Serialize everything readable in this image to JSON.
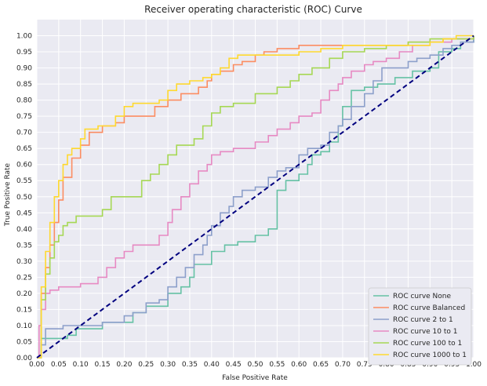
{
  "chart_data": {
    "type": "line",
    "title": "Receiver operating characteristic (ROC) Curve",
    "xlabel": "False Positive Rate",
    "ylabel": "True Positive Rate",
    "xlim": [
      0.0,
      1.0
    ],
    "ylim": [
      0.0,
      1.05
    ],
    "xticks": [
      "0.00",
      "0.05",
      "0.10",
      "0.15",
      "0.20",
      "0.25",
      "0.30",
      "0.35",
      "0.40",
      "0.45",
      "0.50",
      "0.55",
      "0.60",
      "0.65",
      "0.70",
      "0.75",
      "0.80",
      "0.85",
      "0.90",
      "0.95",
      "1.00"
    ],
    "yticks": [
      "0.00",
      "0.05",
      "0.10",
      "0.15",
      "0.20",
      "0.25",
      "0.30",
      "0.35",
      "0.40",
      "0.45",
      "0.50",
      "0.55",
      "0.60",
      "0.65",
      "0.70",
      "0.75",
      "0.80",
      "0.85",
      "0.90",
      "0.95",
      "1.00"
    ],
    "grid": true,
    "background": "#eaeaf2",
    "legend_position": "lower-right",
    "series": [
      {
        "name": "ROC curve None",
        "color": "#66c2a5",
        "points": [
          [
            0,
            0
          ],
          [
            0.01,
            0.02
          ],
          [
            0.01,
            0.06
          ],
          [
            0.05,
            0.06
          ],
          [
            0.07,
            0.07
          ],
          [
            0.09,
            0.09
          ],
          [
            0.15,
            0.09
          ],
          [
            0.15,
            0.11
          ],
          [
            0.2,
            0.11
          ],
          [
            0.22,
            0.14
          ],
          [
            0.25,
            0.16
          ],
          [
            0.28,
            0.16
          ],
          [
            0.3,
            0.2
          ],
          [
            0.33,
            0.22
          ],
          [
            0.35,
            0.25
          ],
          [
            0.36,
            0.29
          ],
          [
            0.4,
            0.33
          ],
          [
            0.43,
            0.35
          ],
          [
            0.46,
            0.36
          ],
          [
            0.5,
            0.38
          ],
          [
            0.53,
            0.4
          ],
          [
            0.55,
            0.52
          ],
          [
            0.57,
            0.55
          ],
          [
            0.6,
            0.57
          ],
          [
            0.62,
            0.6
          ],
          [
            0.63,
            0.63
          ],
          [
            0.65,
            0.64
          ],
          [
            0.67,
            0.67
          ],
          [
            0.69,
            0.72
          ],
          [
            0.7,
            0.78
          ],
          [
            0.72,
            0.83
          ],
          [
            0.75,
            0.84
          ],
          [
            0.78,
            0.85
          ],
          [
            0.82,
            0.87
          ],
          [
            0.86,
            0.89
          ],
          [
            0.9,
            0.9
          ],
          [
            0.92,
            0.95
          ],
          [
            0.95,
            0.96
          ],
          [
            0.97,
            0.98
          ],
          [
            1.0,
            1.0
          ]
        ]
      },
      {
        "name": "ROC curve Balanced",
        "color": "#fc8d62",
        "points": [
          [
            0,
            0
          ],
          [
            0.01,
            0.2
          ],
          [
            0.02,
            0.28
          ],
          [
            0.03,
            0.35
          ],
          [
            0.04,
            0.42
          ],
          [
            0.05,
            0.49
          ],
          [
            0.06,
            0.56
          ],
          [
            0.08,
            0.62
          ],
          [
            0.1,
            0.66
          ],
          [
            0.12,
            0.7
          ],
          [
            0.15,
            0.72
          ],
          [
            0.18,
            0.73
          ],
          [
            0.2,
            0.75
          ],
          [
            0.27,
            0.78
          ],
          [
            0.3,
            0.8
          ],
          [
            0.33,
            0.82
          ],
          [
            0.37,
            0.84
          ],
          [
            0.39,
            0.86
          ],
          [
            0.4,
            0.88
          ],
          [
            0.42,
            0.89
          ],
          [
            0.45,
            0.91
          ],
          [
            0.47,
            0.92
          ],
          [
            0.5,
            0.94
          ],
          [
            0.52,
            0.95
          ],
          [
            0.55,
            0.96
          ],
          [
            0.58,
            0.96
          ],
          [
            0.6,
            0.97
          ],
          [
            0.63,
            0.97
          ],
          [
            0.67,
            0.97
          ],
          [
            0.7,
            0.97
          ],
          [
            0.75,
            0.97
          ],
          [
            0.8,
            0.97
          ],
          [
            0.85,
            0.98
          ],
          [
            0.9,
            0.98
          ],
          [
            0.93,
            0.99
          ],
          [
            0.97,
            0.99
          ],
          [
            1.0,
            1.0
          ]
        ]
      },
      {
        "name": "ROC curve 2 to 1",
        "color": "#8da0cb",
        "points": [
          [
            0,
            0
          ],
          [
            0.01,
            0.01
          ],
          [
            0.01,
            0.04
          ],
          [
            0.02,
            0.07
          ],
          [
            0.02,
            0.09
          ],
          [
            0.06,
            0.1
          ],
          [
            0.13,
            0.1
          ],
          [
            0.15,
            0.11
          ],
          [
            0.17,
            0.11
          ],
          [
            0.2,
            0.13
          ],
          [
            0.22,
            0.14
          ],
          [
            0.25,
            0.17
          ],
          [
            0.28,
            0.18
          ],
          [
            0.3,
            0.22
          ],
          [
            0.32,
            0.25
          ],
          [
            0.34,
            0.28
          ],
          [
            0.36,
            0.32
          ],
          [
            0.38,
            0.35
          ],
          [
            0.39,
            0.38
          ],
          [
            0.4,
            0.41
          ],
          [
            0.42,
            0.45
          ],
          [
            0.44,
            0.47
          ],
          [
            0.45,
            0.5
          ],
          [
            0.47,
            0.52
          ],
          [
            0.5,
            0.53
          ],
          [
            0.53,
            0.56
          ],
          [
            0.55,
            0.58
          ],
          [
            0.57,
            0.59
          ],
          [
            0.6,
            0.63
          ],
          [
            0.62,
            0.65
          ],
          [
            0.65,
            0.66
          ],
          [
            0.67,
            0.7
          ],
          [
            0.69,
            0.72
          ],
          [
            0.7,
            0.74
          ],
          [
            0.72,
            0.78
          ],
          [
            0.75,
            0.82
          ],
          [
            0.77,
            0.86
          ],
          [
            0.79,
            0.9
          ],
          [
            0.85,
            0.92
          ],
          [
            0.87,
            0.93
          ],
          [
            0.9,
            0.94
          ],
          [
            0.93,
            0.96
          ],
          [
            0.95,
            0.97
          ],
          [
            0.97,
            0.98
          ],
          [
            1.0,
            1.0
          ]
        ]
      },
      {
        "name": "ROC curve 10 to 1",
        "color": "#e78ac3",
        "points": [
          [
            0,
            0
          ],
          [
            0.005,
            0.1
          ],
          [
            0.01,
            0.15
          ],
          [
            0.02,
            0.2
          ],
          [
            0.03,
            0.21
          ],
          [
            0.05,
            0.22
          ],
          [
            0.1,
            0.23
          ],
          [
            0.14,
            0.25
          ],
          [
            0.16,
            0.28
          ],
          [
            0.18,
            0.31
          ],
          [
            0.2,
            0.33
          ],
          [
            0.22,
            0.35
          ],
          [
            0.25,
            0.35
          ],
          [
            0.28,
            0.38
          ],
          [
            0.3,
            0.42
          ],
          [
            0.31,
            0.46
          ],
          [
            0.33,
            0.5
          ],
          [
            0.35,
            0.54
          ],
          [
            0.37,
            0.58
          ],
          [
            0.39,
            0.6
          ],
          [
            0.4,
            0.63
          ],
          [
            0.42,
            0.64
          ],
          [
            0.45,
            0.65
          ],
          [
            0.5,
            0.67
          ],
          [
            0.53,
            0.69
          ],
          [
            0.55,
            0.71
          ],
          [
            0.58,
            0.73
          ],
          [
            0.6,
            0.75
          ],
          [
            0.63,
            0.76
          ],
          [
            0.65,
            0.8
          ],
          [
            0.67,
            0.83
          ],
          [
            0.69,
            0.85
          ],
          [
            0.7,
            0.87
          ],
          [
            0.72,
            0.89
          ],
          [
            0.75,
            0.91
          ],
          [
            0.77,
            0.92
          ],
          [
            0.8,
            0.93
          ],
          [
            0.83,
            0.95
          ],
          [
            0.86,
            0.97
          ],
          [
            0.9,
            0.98
          ],
          [
            0.95,
            0.99
          ],
          [
            1.0,
            1.0
          ]
        ]
      },
      {
        "name": "ROC curve 100 to 1",
        "color": "#a6d854",
        "points": [
          [
            0,
            0
          ],
          [
            0.01,
            0.18
          ],
          [
            0.02,
            0.26
          ],
          [
            0.03,
            0.31
          ],
          [
            0.04,
            0.36
          ],
          [
            0.05,
            0.38
          ],
          [
            0.06,
            0.41
          ],
          [
            0.07,
            0.42
          ],
          [
            0.09,
            0.44
          ],
          [
            0.14,
            0.44
          ],
          [
            0.15,
            0.46
          ],
          [
            0.17,
            0.5
          ],
          [
            0.22,
            0.5
          ],
          [
            0.24,
            0.55
          ],
          [
            0.26,
            0.57
          ],
          [
            0.28,
            0.6
          ],
          [
            0.3,
            0.63
          ],
          [
            0.32,
            0.66
          ],
          [
            0.36,
            0.68
          ],
          [
            0.38,
            0.72
          ],
          [
            0.4,
            0.76
          ],
          [
            0.42,
            0.78
          ],
          [
            0.45,
            0.79
          ],
          [
            0.5,
            0.82
          ],
          [
            0.55,
            0.84
          ],
          [
            0.58,
            0.86
          ],
          [
            0.6,
            0.88
          ],
          [
            0.63,
            0.9
          ],
          [
            0.67,
            0.93
          ],
          [
            0.7,
            0.95
          ],
          [
            0.75,
            0.96
          ],
          [
            0.8,
            0.97
          ],
          [
            0.85,
            0.98
          ],
          [
            0.9,
            0.99
          ],
          [
            0.95,
            0.99
          ],
          [
            1.0,
            1.0
          ]
        ]
      },
      {
        "name": "ROC curve 1000 to 1",
        "color": "#ffd92f",
        "points": [
          [
            0,
            0
          ],
          [
            0.01,
            0.22
          ],
          [
            0.02,
            0.33
          ],
          [
            0.03,
            0.42
          ],
          [
            0.04,
            0.5
          ],
          [
            0.05,
            0.55
          ],
          [
            0.06,
            0.6
          ],
          [
            0.07,
            0.63
          ],
          [
            0.08,
            0.65
          ],
          [
            0.1,
            0.68
          ],
          [
            0.11,
            0.71
          ],
          [
            0.14,
            0.72
          ],
          [
            0.18,
            0.75
          ],
          [
            0.2,
            0.78
          ],
          [
            0.22,
            0.79
          ],
          [
            0.28,
            0.8
          ],
          [
            0.3,
            0.83
          ],
          [
            0.32,
            0.85
          ],
          [
            0.35,
            0.86
          ],
          [
            0.38,
            0.87
          ],
          [
            0.4,
            0.88
          ],
          [
            0.42,
            0.9
          ],
          [
            0.44,
            0.93
          ],
          [
            0.46,
            0.94
          ],
          [
            0.5,
            0.94
          ],
          [
            0.55,
            0.94
          ],
          [
            0.6,
            0.95
          ],
          [
            0.65,
            0.96
          ],
          [
            0.7,
            0.97
          ],
          [
            0.75,
            0.97
          ],
          [
            0.8,
            0.97
          ],
          [
            0.85,
            0.97
          ],
          [
            0.9,
            0.98
          ],
          [
            0.93,
            0.99
          ],
          [
            0.96,
            1.0
          ],
          [
            1.0,
            1.0
          ]
        ]
      },
      {
        "name": "",
        "color": "#00007f",
        "style": "dashed",
        "points": [
          [
            0,
            0
          ],
          [
            1,
            1
          ]
        ]
      }
    ]
  }
}
